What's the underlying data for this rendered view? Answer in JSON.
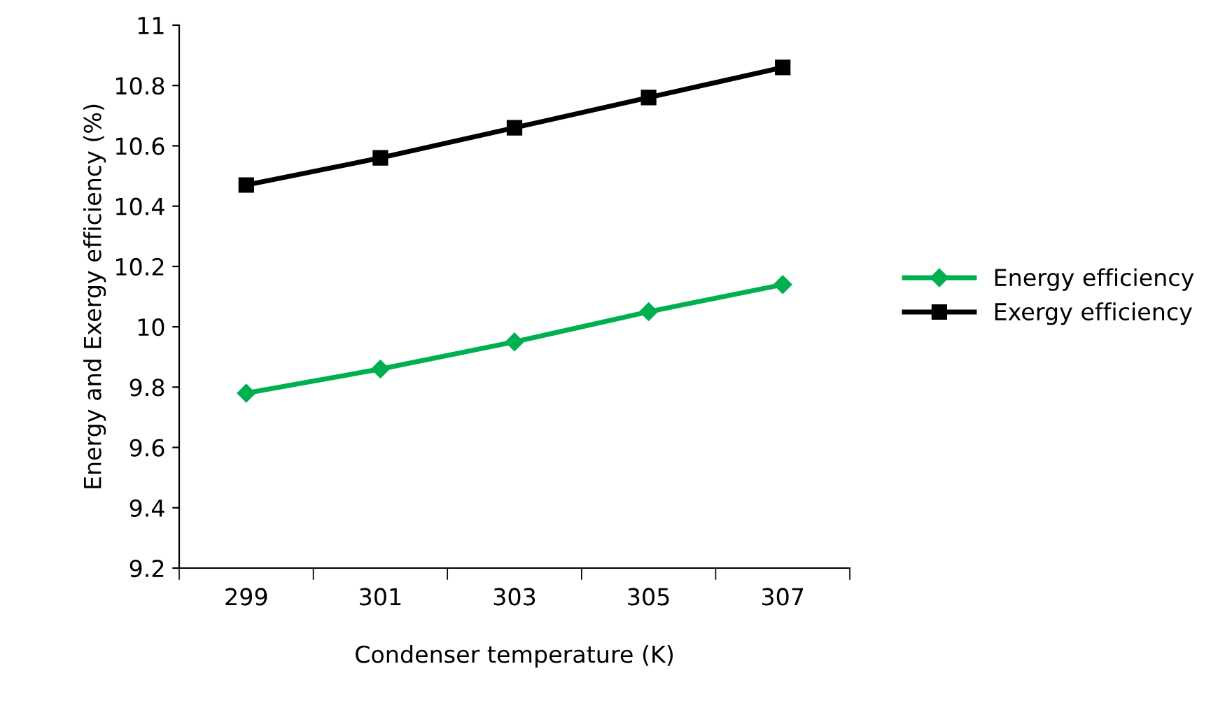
{
  "chart_data": {
    "type": "line",
    "xlabel": "Condenser temperature (K)",
    "ylabel": "Energy and Exergy efficiency (%)",
    "categories": [
      "299",
      "301",
      "303",
      "305",
      "307"
    ],
    "series": [
      {
        "name": "Energy efficiency",
        "color": "#00b050",
        "marker": "diamond",
        "values": [
          9.78,
          9.86,
          9.95,
          10.05,
          10.14
        ]
      },
      {
        "name": "Exergy efficiency",
        "color": "#000000",
        "marker": "square",
        "values": [
          10.47,
          10.56,
          10.66,
          10.76,
          10.86
        ]
      }
    ],
    "ylim": [
      9.2,
      11
    ],
    "yticks": [
      9.2,
      9.4,
      9.6,
      9.8,
      10,
      10.2,
      10.4,
      10.6,
      10.8,
      11
    ],
    "grid": false,
    "legend": "right"
  }
}
